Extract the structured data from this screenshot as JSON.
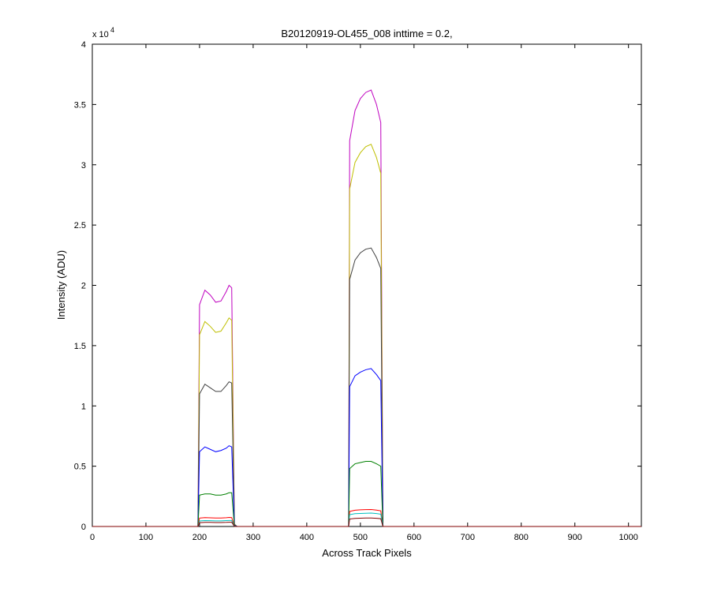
{
  "chart_data": {
    "type": "line",
    "title": "B20120919-OL455_008 inttime = 0.2,",
    "x_label": "Across Track Pixels",
    "y_label": "Intensity (ADU)",
    "y_multiplier": "x 10",
    "y_multiplier_exponent": "4",
    "xlim": [
      0,
      1024
    ],
    "ylim": [
      0,
      40000
    ],
    "xticks": [
      0,
      100,
      200,
      300,
      400,
      500,
      600,
      700,
      800,
      900,
      1000
    ],
    "yticks": [
      0,
      {
        "value": 5000,
        "label": "0.5"
      },
      {
        "value": 10000,
        "label": "1"
      },
      {
        "value": 15000,
        "label": "1.5"
      },
      {
        "value": 20000,
        "label": "2"
      },
      {
        "value": 25000,
        "label": "2.5"
      },
      {
        "value": 30000,
        "label": "3"
      },
      {
        "value": 35000,
        "label": "3.5"
      },
      {
        "value": 40000,
        "label": "4"
      }
    ],
    "x": [
      0,
      190,
      197,
      200,
      210,
      220,
      230,
      240,
      250,
      255,
      260,
      265,
      270,
      300,
      470,
      478,
      480,
      490,
      500,
      510,
      520,
      530,
      538,
      542,
      545,
      560,
      1024
    ],
    "series": [
      {
        "color": "#bf00bf",
        "values": [
          0,
          0,
          0,
          18400,
          19600,
          19200,
          18600,
          18700,
          19500,
          20000,
          19800,
          200,
          0,
          0,
          0,
          0,
          32000,
          34500,
          35500,
          36000,
          36200,
          35000,
          33500,
          0,
          0,
          0,
          0
        ]
      },
      {
        "color": "#bfbf00",
        "values": [
          0,
          0,
          0,
          15900,
          17000,
          16600,
          16100,
          16200,
          16900,
          17300,
          17100,
          200,
          0,
          0,
          0,
          0,
          28000,
          30200,
          31000,
          31500,
          31700,
          30600,
          29300,
          0,
          0,
          0,
          0
        ]
      },
      {
        "color": "#404040",
        "values": [
          0,
          0,
          0,
          11000,
          11800,
          11500,
          11200,
          11200,
          11700,
          12000,
          11900,
          150,
          0,
          0,
          0,
          0,
          20500,
          22100,
          22700,
          23000,
          23100,
          22300,
          21400,
          0,
          0,
          0,
          0
        ]
      },
      {
        "color": "#0000ff",
        "values": [
          0,
          0,
          0,
          6200,
          6600,
          6400,
          6200,
          6300,
          6500,
          6700,
          6600,
          100,
          0,
          0,
          0,
          0,
          11600,
          12500,
          12800,
          13000,
          13100,
          12600,
          12100,
          0,
          0,
          0,
          0
        ]
      },
      {
        "color": "#008000",
        "values": [
          0,
          0,
          0,
          2600,
          2700,
          2700,
          2600,
          2600,
          2700,
          2800,
          2800,
          50,
          0,
          0,
          0,
          0,
          4800,
          5200,
          5300,
          5400,
          5400,
          5200,
          5000,
          0,
          0,
          0,
          0
        ]
      },
      {
        "color": "#ff0000",
        "values": [
          0,
          0,
          0,
          700,
          740,
          720,
          700,
          700,
          730,
          750,
          740,
          20,
          0,
          0,
          0,
          0,
          1250,
          1350,
          1380,
          1400,
          1410,
          1360,
          1300,
          0,
          0,
          0,
          0
        ]
      },
      {
        "color": "#00bfbf",
        "values": [
          0,
          0,
          0,
          460,
          490,
          480,
          470,
          470,
          490,
          500,
          500,
          20,
          0,
          0,
          0,
          0,
          980,
          1060,
          1080,
          1100,
          1110,
          1070,
          1020,
          0,
          0,
          0,
          0
        ]
      },
      {
        "color": "#800000",
        "values": [
          0,
          0,
          0,
          320,
          340,
          340,
          330,
          330,
          340,
          350,
          350,
          10,
          0,
          0,
          0,
          0,
          620,
          670,
          690,
          700,
          700,
          680,
          650,
          0,
          0,
          0,
          0
        ]
      }
    ]
  }
}
